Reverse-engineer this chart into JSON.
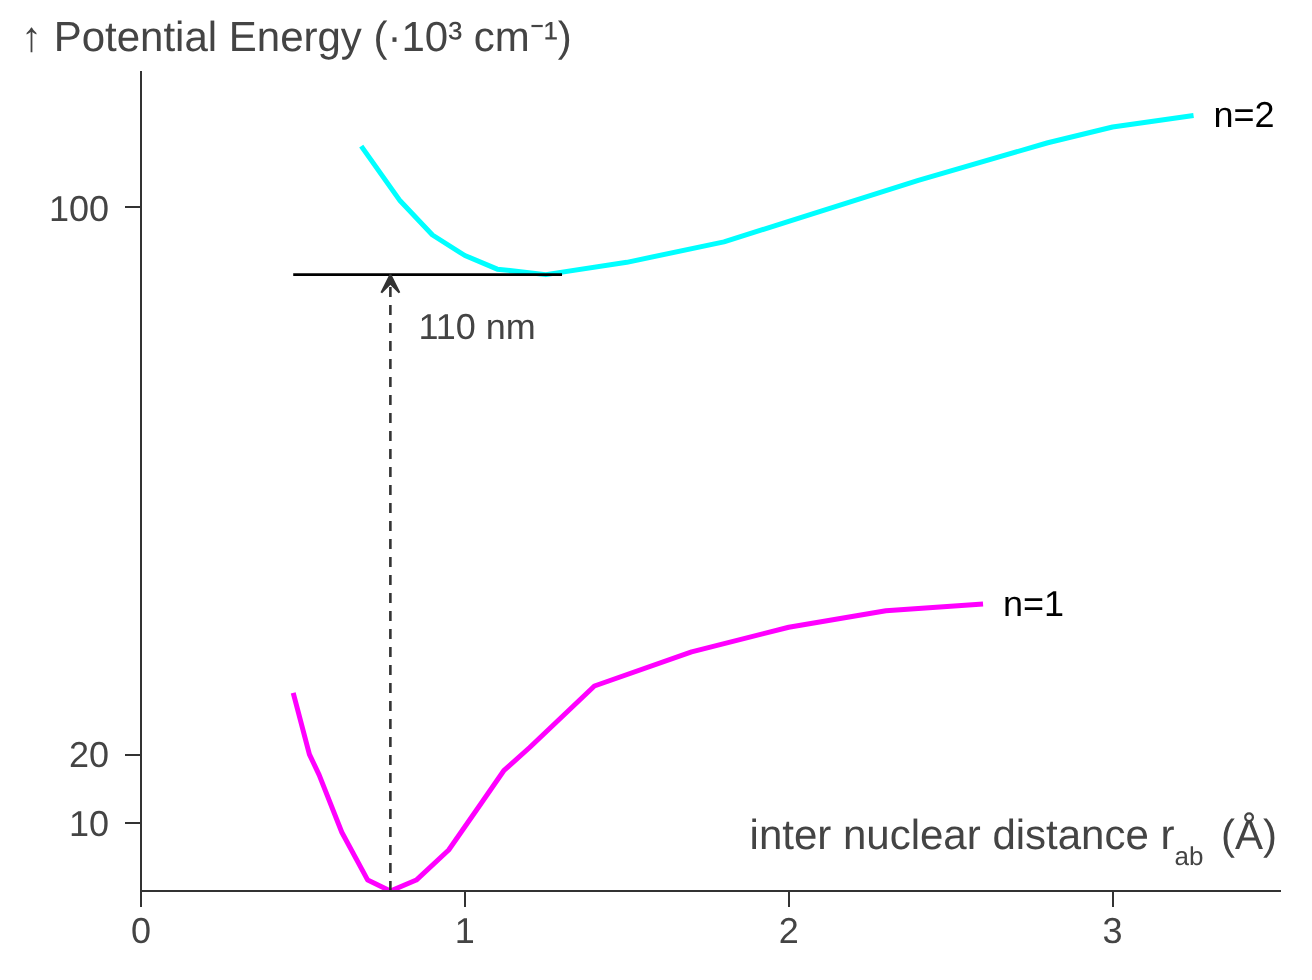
{
  "chart_data": {
    "type": "line",
    "ylabel": "↑ Potential Energy (·10³ cm⁻¹)",
    "xlabel": "inter nuclear distance r$_{ab}$ (Å)",
    "xlim": [
      0,
      3.52
    ],
    "ylim": [
      0,
      120
    ],
    "xticks": [
      0,
      1,
      2,
      3
    ],
    "yticks": [
      10,
      20,
      100
    ],
    "grid": false,
    "series": [
      {
        "name": "n=1",
        "color": "#ff00ff",
        "x": [
          0.47,
          0.52,
          0.55,
          0.62,
          0.7,
          0.77,
          0.85,
          0.95,
          1.05,
          1.12,
          1.2,
          1.4,
          1.7,
          2.0,
          2.3,
          2.6
        ],
        "values": [
          29,
          20,
          17,
          8.6,
          1.6,
          0,
          1.6,
          6,
          12.8,
          17.6,
          21,
          30,
          35,
          38.6,
          41,
          42
        ]
      },
      {
        "name": "n=2",
        "color": "#00ffff",
        "x": [
          0.68,
          0.8,
          0.9,
          1.0,
          1.1,
          1.25,
          1.5,
          1.8,
          2.0,
          2.4,
          2.8,
          3.0,
          3.25
        ],
        "values": [
          109,
          101,
          96,
          93,
          91,
          90.2,
          92,
          95,
          98,
          104,
          109.5,
          111.8,
          113.5
        ]
      },
      {
        "color": "#000000",
        "x": [
          0.47,
          1.3
        ],
        "values": [
          90.2,
          90.2
        ],
        "line_style": "solid"
      }
    ],
    "annotations": [
      {
        "text": "110 nm",
        "x": 0.77,
        "y": 90.2
      }
    ]
  }
}
